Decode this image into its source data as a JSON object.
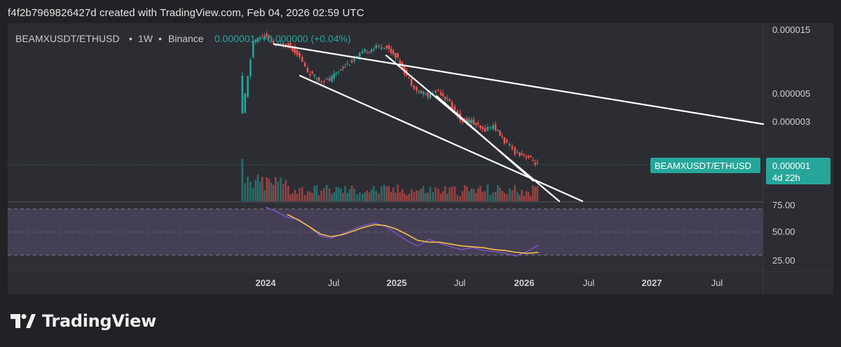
{
  "header": {
    "text": "f4f2b7969826427d created with TradingView.com, Feb 04, 2026 02:59 UTC"
  },
  "legend": {
    "symbol": "BEAMXUSDT/ETHUSD",
    "sep1": "•",
    "interval": "1W",
    "sep2": "•",
    "exchange": "Binance",
    "value": "0.000001",
    "change": "+0.000000 (+0.04%)"
  },
  "price_tag": {
    "symbol": "BEAMXUSDT/ETHUSD",
    "value": "0.000001",
    "countdown": "4d 22h"
  },
  "footer": {
    "brand": "TradingView"
  },
  "colors": {
    "background": "#222226",
    "pane": "#2c2d33",
    "up": "#26a69a",
    "down": "#ef5350",
    "rsi": "#7e57c2",
    "rsi_ma": "#f7c04a",
    "trendline": "#ffffff",
    "tag": "#26a69a"
  },
  "chart_data": [
    {
      "type": "candlestick",
      "symbol": "BEAMXUSDT/ETHUSD",
      "interval": "1W",
      "y_scale": "log",
      "y_ticks": [
        "0.000015",
        "0.000005",
        "0.000003"
      ],
      "x_ticks": [
        "2024",
        "Jul",
        "2025",
        "Jul",
        "2026",
        "Jul",
        "2027",
        "Jul"
      ],
      "last_value": "0.000001",
      "price_path": [
        [
          "2023-11",
          2.8e-06
        ],
        [
          "2023-12",
          1.2e-05
        ],
        [
          "2024-01",
          1.35e-05
        ],
        [
          "2024-02",
          1.1e-05
        ],
        [
          "2024-03",
          1.15e-05
        ],
        [
          "2024-04",
          9.5e-06
        ],
        [
          "2024-05",
          6.5e-06
        ],
        [
          "2024-06",
          5.5e-06
        ],
        [
          "2024-07",
          5.5e-06
        ],
        [
          "2024-08",
          7e-06
        ],
        [
          "2024-09",
          8e-06
        ],
        [
          "2024-10",
          9.5e-06
        ],
        [
          "2024-11",
          1.05e-05
        ],
        [
          "2024-12",
          1.1e-05
        ],
        [
          "2025-01",
          9e-06
        ],
        [
          "2025-02",
          6e-06
        ],
        [
          "2025-03",
          4.5e-06
        ],
        [
          "2025-04",
          4e-06
        ],
        [
          "2025-05",
          4.5e-06
        ],
        [
          "2025-06",
          3.5e-06
        ],
        [
          "2025-07",
          2.5e-06
        ],
        [
          "2025-08",
          2.4e-06
        ],
        [
          "2025-09",
          2e-06
        ],
        [
          "2025-10",
          2.2e-06
        ],
        [
          "2025-11",
          1.6e-06
        ],
        [
          "2025-12",
          1.3e-06
        ],
        [
          "2026-01",
          1.2e-06
        ],
        [
          "2026-02",
          1e-06
        ]
      ],
      "volume_histogram": true,
      "trendlines": 4
    },
    {
      "type": "line",
      "name": "RSI",
      "y_ticks": [
        "75.00",
        "50.00",
        "25.00"
      ],
      "ylim": [
        15,
        80
      ],
      "bands": [
        30,
        70
      ],
      "series": [
        {
          "name": "RSI",
          "points": [
            [
              "2024-01",
              77
            ],
            [
              "2024-02",
              72
            ],
            [
              "2024-03",
              66
            ],
            [
              "2024-04",
              64
            ],
            [
              "2024-05",
              56
            ],
            [
              "2024-06",
              46
            ],
            [
              "2024-07",
              43
            ],
            [
              "2024-08",
              48
            ],
            [
              "2024-09",
              53
            ],
            [
              "2024-10",
              57
            ],
            [
              "2024-11",
              60
            ],
            [
              "2024-12",
              56
            ],
            [
              "2025-01",
              48
            ],
            [
              "2025-02",
              40
            ],
            [
              "2025-03",
              35
            ],
            [
              "2025-04",
              42
            ],
            [
              "2025-05",
              38
            ],
            [
              "2025-06",
              34
            ],
            [
              "2025-07",
              31
            ],
            [
              "2025-08",
              33
            ],
            [
              "2025-09",
              30
            ],
            [
              "2025-10",
              29
            ],
            [
              "2025-11",
              27
            ],
            [
              "2025-12",
              24
            ],
            [
              "2026-01",
              29
            ],
            [
              "2026-02",
              36
            ]
          ]
        },
        {
          "name": "RSI MA",
          "points": [
            [
              "2024-03",
              69
            ],
            [
              "2024-04",
              63
            ],
            [
              "2024-05",
              56
            ],
            [
              "2024-06",
              48
            ],
            [
              "2024-07",
              45
            ],
            [
              "2024-08",
              47
            ],
            [
              "2024-09",
              51
            ],
            [
              "2024-10",
              55
            ],
            [
              "2024-11",
              58
            ],
            [
              "2024-12",
              57
            ],
            [
              "2025-01",
              53
            ],
            [
              "2025-02",
              47
            ],
            [
              "2025-03",
              41
            ],
            [
              "2025-04",
              39
            ],
            [
              "2025-05",
              39
            ],
            [
              "2025-06",
              37
            ],
            [
              "2025-07",
              35
            ],
            [
              "2025-08",
              34
            ],
            [
              "2025-09",
              33
            ],
            [
              "2025-10",
              31
            ],
            [
              "2025-11",
              30
            ],
            [
              "2025-12",
              28
            ],
            [
              "2026-01",
              27
            ],
            [
              "2026-02",
              28
            ]
          ]
        }
      ]
    }
  ]
}
